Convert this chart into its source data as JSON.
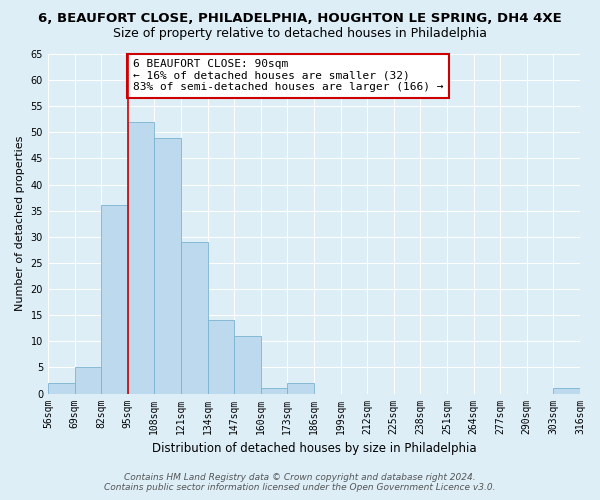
{
  "title": "6, BEAUFORT CLOSE, PHILADELPHIA, HOUGHTON LE SPRING, DH4 4XE",
  "subtitle": "Size of property relative to detached houses in Philadelphia",
  "xlabel": "Distribution of detached houses by size in Philadelphia",
  "ylabel": "Number of detached properties",
  "bar_values": [
    2,
    5,
    36,
    52,
    49,
    29,
    14,
    11,
    1,
    2,
    0,
    0,
    0,
    0,
    0,
    0,
    0,
    0,
    0,
    1
  ],
  "bin_labels": [
    "56sqm",
    "69sqm",
    "82sqm",
    "95sqm",
    "108sqm",
    "121sqm",
    "134sqm",
    "147sqm",
    "160sqm",
    "173sqm",
    "186sqm",
    "199sqm",
    "212sqm",
    "225sqm",
    "238sqm",
    "251sqm",
    "264sqm",
    "277sqm",
    "290sqm",
    "303sqm",
    "316sqm"
  ],
  "bar_color": "#bdd9ed",
  "bar_edge_color": "#7ab3d0",
  "vline_color": "#cc0000",
  "vline_x": 3,
  "ylim": [
    0,
    65
  ],
  "yticks": [
    0,
    5,
    10,
    15,
    20,
    25,
    30,
    35,
    40,
    45,
    50,
    55,
    60,
    65
  ],
  "annotation_line1": "6 BEAUFORT CLOSE: 90sqm",
  "annotation_line2": "← 16% of detached houses are smaller (32)",
  "annotation_line3": "83% of semi-detached houses are larger (166) →",
  "annotation_box_color": "#ffffff",
  "annotation_box_edge": "#cc0000",
  "footer_line1": "Contains HM Land Registry data © Crown copyright and database right 2024.",
  "footer_line2": "Contains public sector information licensed under the Open Government Licence v3.0.",
  "background_color": "#ddeef7",
  "grid_color": "#ffffff",
  "title_fontsize": 9.5,
  "subtitle_fontsize": 9,
  "xlabel_fontsize": 8.5,
  "ylabel_fontsize": 8,
  "tick_fontsize": 7,
  "annotation_fontsize": 8,
  "footer_fontsize": 6.5
}
